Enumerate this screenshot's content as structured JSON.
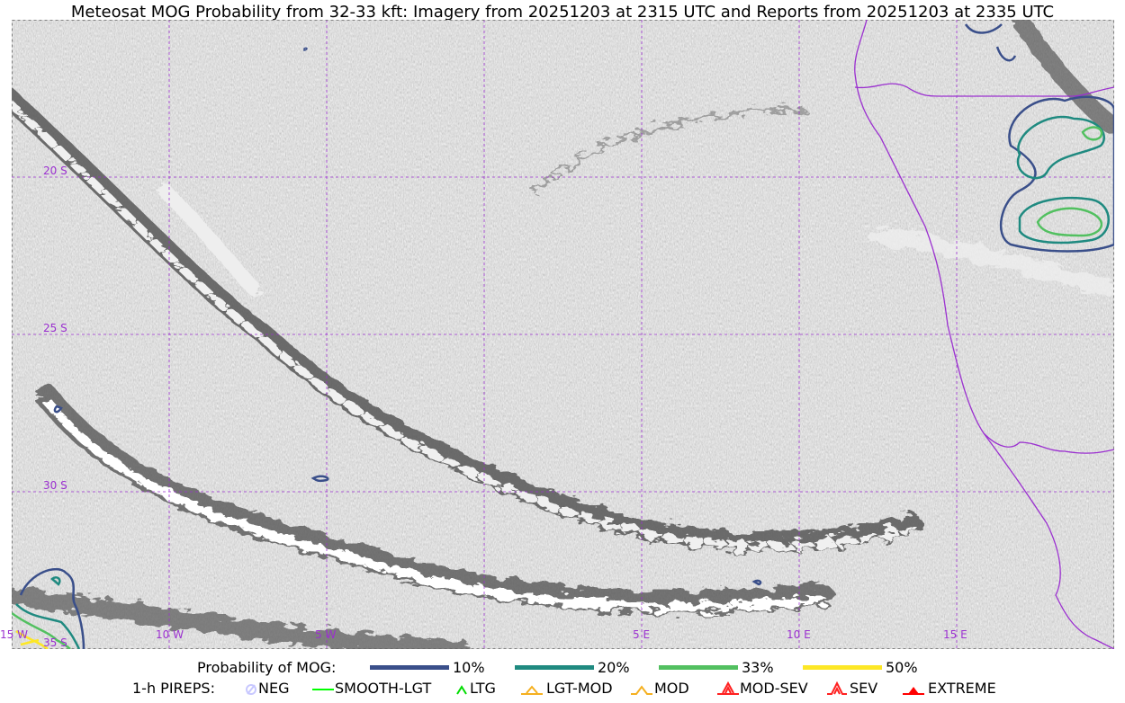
{
  "title": "Meteosat MOG Probability from 32-33 kft: Imagery from 20251203 at 2315 UTC and Reports from 20251203 at 2335 UTC",
  "map": {
    "lat_labels": [
      "20 S",
      "25 S",
      "30 S",
      "35 S"
    ],
    "lon_labels": [
      "15 W",
      "10 W",
      "5 W",
      "5 E",
      "10 E",
      "15 E"
    ],
    "gridline_color": "#9b30d0",
    "coastline_color": "#9b30d0"
  },
  "legend": {
    "probability_label": "Probability of MOG:",
    "probability_levels": [
      {
        "label": "10%",
        "color": "#3a4f8a"
      },
      {
        "label": "20%",
        "color": "#1f8a80"
      },
      {
        "label": "33%",
        "color": "#52c060"
      },
      {
        "label": "50%",
        "color": "#fde725"
      }
    ],
    "pireps_label": "1-h PIREPS:",
    "pireps": [
      {
        "label": "NEG",
        "icon": "neg-circle-icon",
        "color": "#c8c8ff"
      },
      {
        "label": "SMOOTH-LGT",
        "icon": "line-icon",
        "color": "#00ff00"
      },
      {
        "label": "LTG",
        "icon": "caret-icon",
        "color": "#00dd00"
      },
      {
        "label": "LGT-MOD",
        "icon": "caret-bar-icon",
        "color": "#f5b020"
      },
      {
        "label": "MOD",
        "icon": "caret-icon",
        "color": "#f5b020"
      },
      {
        "label": "MOD-SEV",
        "icon": "double-caret-bar-icon",
        "color": "#ff2020"
      },
      {
        "label": "SEV",
        "icon": "double-caret-icon",
        "color": "#ff2020"
      },
      {
        "label": "EXTREME",
        "icon": "filled-triangle-icon",
        "color": "#ff0000"
      }
    ]
  }
}
